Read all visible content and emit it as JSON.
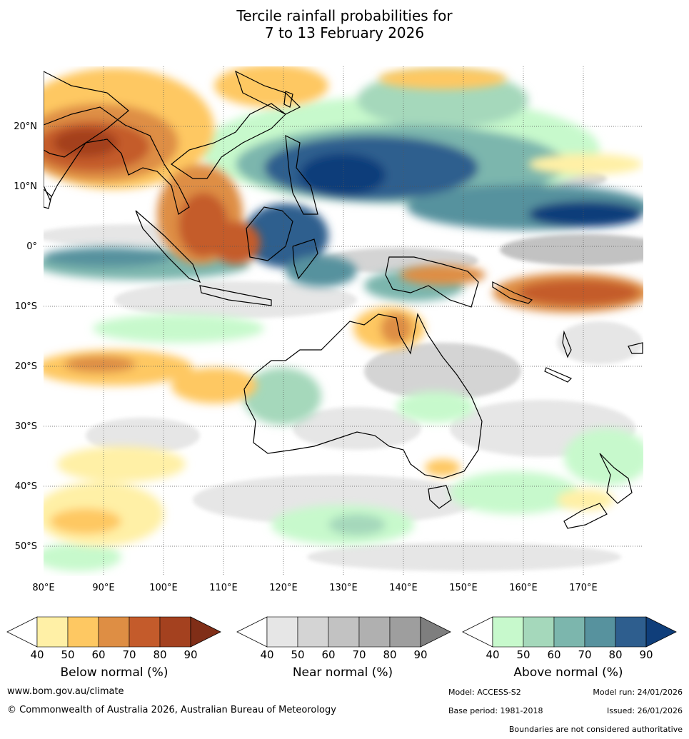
{
  "title": {
    "line1": "Tercile rainfall probabilities for",
    "line2": "7 to 13 February 2026"
  },
  "map": {
    "lon_labels": [
      "80°E",
      "90°E",
      "100°E",
      "110°E",
      "120°E",
      "130°E",
      "140°E",
      "150°E",
      "160°E",
      "170°E"
    ],
    "lat_labels": [
      "20°N",
      "10°N",
      "0°",
      "10°S",
      "20°S",
      "30°S",
      "40°S",
      "50°S"
    ],
    "extent": {
      "lon_min": 80,
      "lon_max": 180,
      "lat_min": -55,
      "lat_max": 30
    }
  },
  "legend": {
    "below": {
      "label": "Below normal (%)",
      "ticks": [
        "40",
        "50",
        "60",
        "70",
        "80",
        "90"
      ],
      "colors": [
        "#fff0a6",
        "#fec862",
        "#de8e44",
        "#c45b2b",
        "#a4411f",
        "#802e17"
      ]
    },
    "near": {
      "label": "Near normal (%)",
      "ticks": [
        "40",
        "50",
        "60",
        "70",
        "80",
        "90"
      ],
      "colors": [
        "#e6e6e6",
        "#d4d4d4",
        "#c2c2c2",
        "#b0b0b0",
        "#9e9e9e",
        "#7e7e7e"
      ]
    },
    "above": {
      "label": "Above normal (%)",
      "ticks": [
        "40",
        "50",
        "60",
        "70",
        "80",
        "90"
      ],
      "colors": [
        "#c7f9cc",
        "#a5d8bb",
        "#7cb6ad",
        "#57929e",
        "#2e5e8e",
        "#0f3e7a"
      ]
    }
  },
  "footer": {
    "website": "www.bom.gov.au/climate",
    "copyright": "© Commonwealth of Australia 2026, Australian Bureau of Meteorology",
    "model": "Model: ACCESS-S2",
    "model_run": "Model run: 24/01/2026",
    "base_period": "Base period: 1981-2018",
    "issued": "Issued: 26/01/2026",
    "disclaimer": "Boundaries are not considered authoritative"
  }
}
